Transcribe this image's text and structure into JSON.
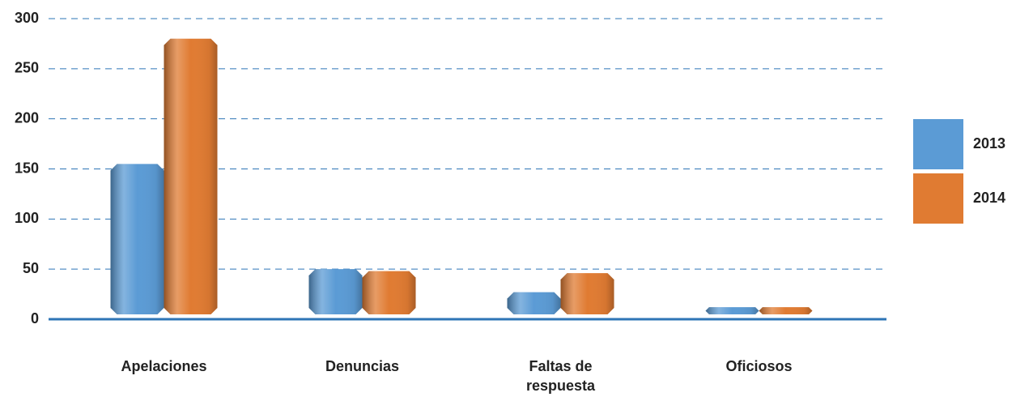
{
  "chart_data": {
    "type": "bar",
    "categories": [
      "Apelaciones",
      "Denuncias",
      "Faltas de respuesta",
      "Oficiosos"
    ],
    "series": [
      {
        "name": "2013",
        "color": "#5b9bd5",
        "values": [
          155,
          50,
          27,
          12
        ]
      },
      {
        "name": "2014",
        "color": "#e07b32",
        "values": [
          280,
          48,
          46,
          12
        ]
      }
    ],
    "ylim": [
      0,
      300
    ],
    "yticks": [
      0,
      50,
      100,
      150,
      200,
      250,
      300
    ],
    "grid": true,
    "legend": "right"
  }
}
